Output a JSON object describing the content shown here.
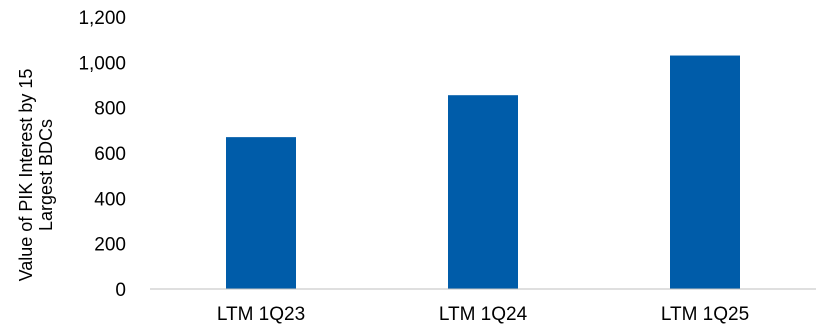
{
  "chart_data": {
    "type": "bar",
    "categories": [
      "LTM 1Q23",
      "LTM 1Q24",
      "LTM 1Q25"
    ],
    "values": [
      670,
      855,
      1030
    ],
    "title": "",
    "xlabel": "",
    "ylabel": [
      "Value of PIK Interest by 15",
      "Largest BDCs"
    ],
    "ylim": [
      0,
      1200
    ],
    "yticks": [
      0,
      200,
      400,
      600,
      800,
      1000,
      1200
    ],
    "ytick_labels": [
      "0",
      "200",
      "400",
      "600",
      "800",
      "1,000",
      "1,200"
    ],
    "bar_color": "#005ca9",
    "axis_color": "#bfbfbf",
    "grid": false,
    "legend": "none"
  }
}
